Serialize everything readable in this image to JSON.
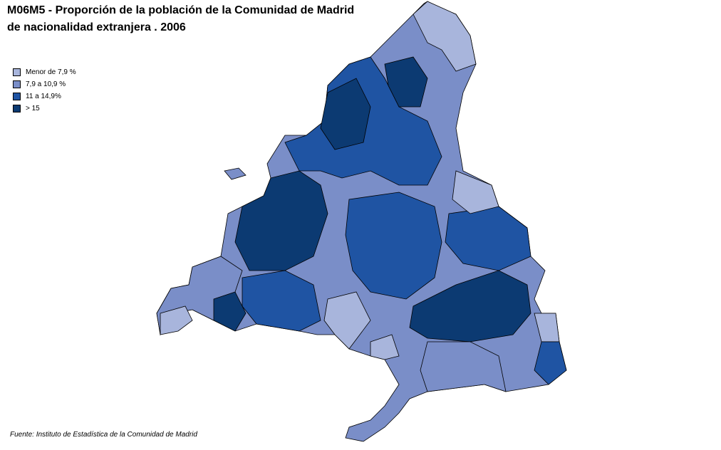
{
  "title": [
    "M06M5 - Proporción de la población de la Comunidad de Madrid",
    "de nacionalidad extranjera . 2006"
  ],
  "legend": {
    "items": [
      {
        "label": "Menor de 7,9 %",
        "color": "#a8b5dc"
      },
      {
        "label": "7,9 a 10,9 %",
        "color": "#7a8ec8"
      },
      {
        "label": "11 a 14,9%",
        "color": "#1f54a3"
      },
      {
        "label": "> 15",
        "color": "#0c3a72"
      }
    ]
  },
  "source": "Fuente: Instituto de Estadística de la Comunidad  de Madrid"
}
